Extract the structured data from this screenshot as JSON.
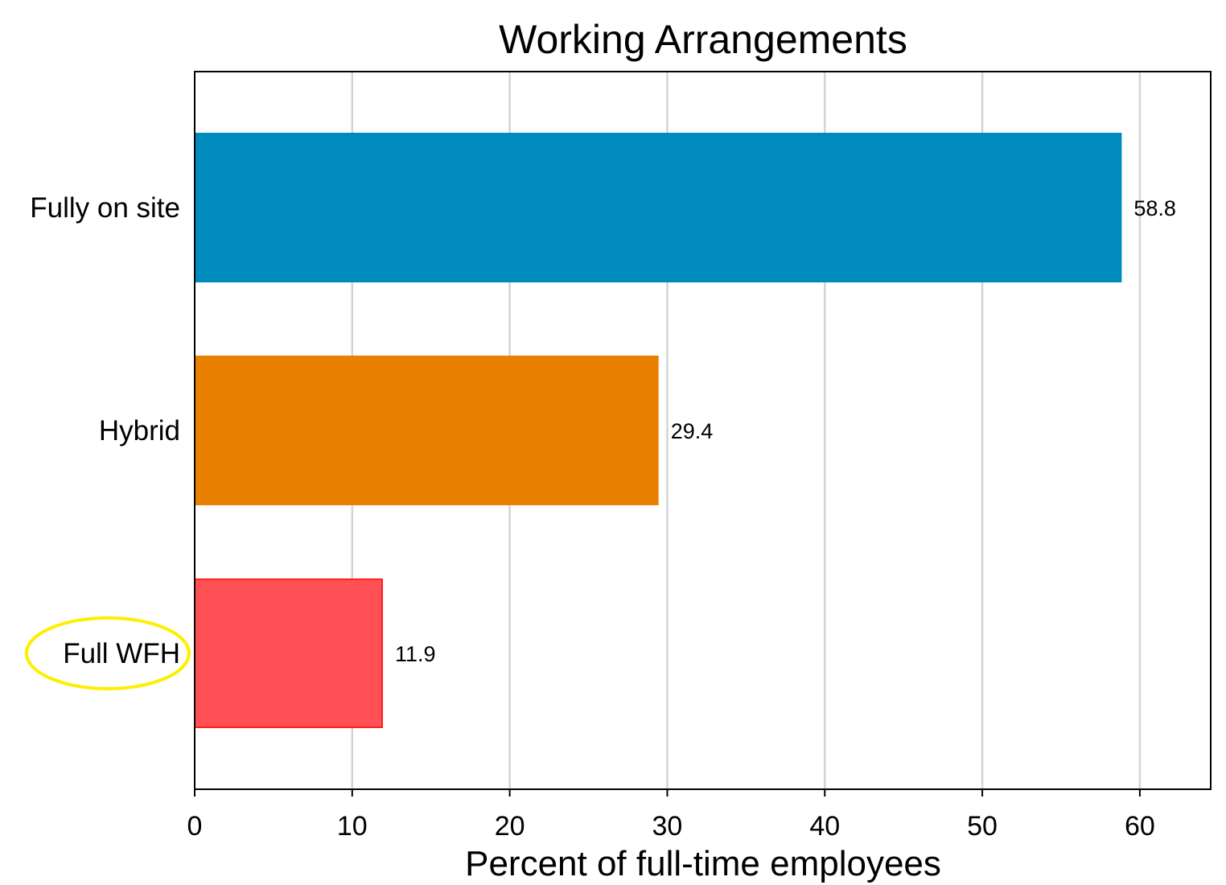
{
  "chart_data": {
    "type": "bar",
    "orientation": "horizontal",
    "title": "Working Arrangements",
    "xlabel": "Percent of full-time employees",
    "ylabel": "",
    "xlim": [
      0,
      64.5
    ],
    "xticks": [
      "0",
      "10",
      "20",
      "30",
      "40",
      "50",
      "60"
    ],
    "xtick_values": [
      0,
      10,
      20,
      30,
      40,
      50,
      60
    ],
    "grid": "vertical",
    "categories": [
      "Fully on site",
      "Hybrid",
      "Full WFH"
    ],
    "values": [
      58.8,
      29.4,
      11.9
    ],
    "value_labels": [
      "58.8",
      "29.4",
      "11.9"
    ],
    "colors": [
      "#008bbf",
      "#e98000",
      "#ff5055"
    ],
    "border_colors": [
      "#008bbf",
      "#e98000",
      "#ff2020"
    ],
    "highlight": {
      "category": "Full WFH",
      "shape": "ellipse",
      "color": "#ffee00"
    }
  }
}
